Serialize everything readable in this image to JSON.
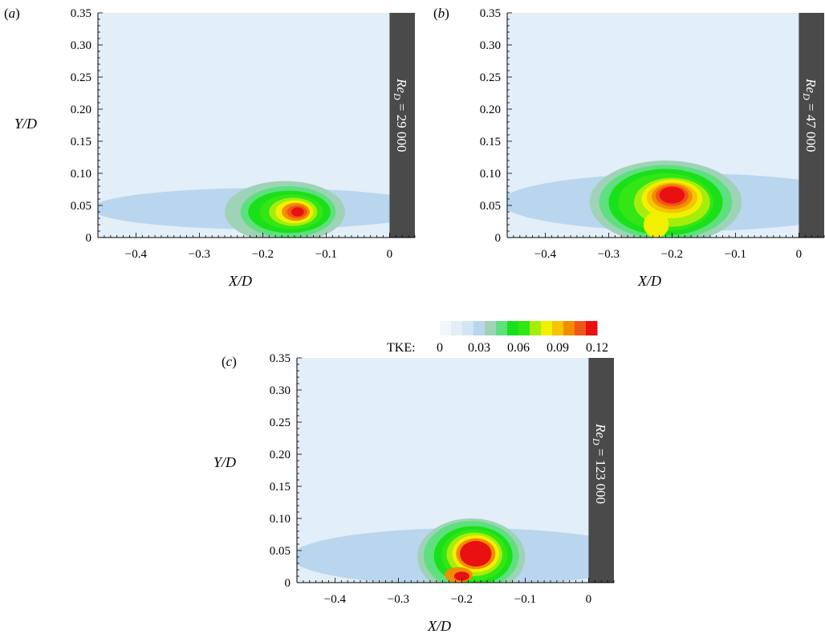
{
  "chart_data": [
    {
      "panel_label": "(a)",
      "type": "heatmap",
      "variable": "TKE",
      "xlabel": "X/D",
      "ylabel": "Y/D",
      "xlim": [
        -0.46,
        0.04
      ],
      "ylim": [
        0,
        0.35
      ],
      "x_ticks": [
        -0.4,
        -0.3,
        -0.2,
        -0.1,
        0
      ],
      "x_tick_labels": [
        "−0.4",
        "−0.3",
        "−0.2",
        "−0.1",
        "0"
      ],
      "y_ticks": [
        0,
        0.05,
        0.1,
        0.15,
        0.2,
        0.25,
        0.3,
        0.35
      ],
      "y_tick_labels": [
        "0",
        "0.05",
        "0.10",
        "0.15",
        "0.20",
        "0.25",
        "0.30",
        "0.35"
      ],
      "annotation": "Re_D = 29 000",
      "re_text": "Re",
      "re_sub": "D",
      "re_value": " = 29 000",
      "cylinder_x_start": 0,
      "tke_peak": {
        "x": -0.145,
        "y": 0.04,
        "value": 0.12
      }
    },
    {
      "panel_label": "(b)",
      "type": "heatmap",
      "variable": "TKE",
      "xlabel": "X/D",
      "ylabel": "",
      "xlim": [
        -0.46,
        0.04
      ],
      "ylim": [
        0,
        0.35
      ],
      "x_ticks": [
        -0.4,
        -0.3,
        -0.2,
        -0.1,
        0
      ],
      "x_tick_labels": [
        "−0.4",
        "−0.3",
        "−0.2",
        "−0.1",
        "0"
      ],
      "y_ticks": [
        0,
        0.05,
        0.1,
        0.15,
        0.2,
        0.25,
        0.3,
        0.35
      ],
      "y_tick_labels": [
        "0",
        "0.05",
        "0.10",
        "0.15",
        "0.20",
        "0.25",
        "0.30",
        "0.35"
      ],
      "annotation": "Re_D = 47 000",
      "re_text": "Re",
      "re_sub": "D",
      "re_value": " = 47 000",
      "cylinder_x_start": 0,
      "tke_peak": {
        "x": -0.2,
        "y": 0.065,
        "value": 0.12
      }
    },
    {
      "panel_label": "(c)",
      "type": "heatmap",
      "variable": "TKE",
      "xlabel": "X/D",
      "ylabel": "Y/D",
      "xlim": [
        -0.46,
        0.04
      ],
      "ylim": [
        0,
        0.35
      ],
      "x_ticks": [
        -0.4,
        -0.3,
        -0.2,
        -0.1,
        0
      ],
      "x_tick_labels": [
        "−0.4",
        "−0.3",
        "−0.2",
        "−0.1",
        "0"
      ],
      "y_ticks": [
        0,
        0.05,
        0.1,
        0.15,
        0.2,
        0.25,
        0.3,
        0.35
      ],
      "y_tick_labels": [
        "0",
        "0.05",
        "0.10",
        "0.15",
        "0.20",
        "0.25",
        "0.30",
        "0.35"
      ],
      "annotation": "Re_D = 123 000",
      "re_text": "Re",
      "re_sub": "D",
      "re_value": " = 123 000",
      "cylinder_x_start": 0,
      "tke_peak": {
        "x": -0.18,
        "y": 0.045,
        "value": 0.12
      }
    }
  ],
  "colorbar": {
    "title": "TKE:",
    "range": [
      0,
      0.12
    ],
    "tick_labels": [
      "0",
      "0.03",
      "0.06",
      "0.09",
      "0.12"
    ],
    "colors": [
      "#f2f7fb",
      "#e2eef8",
      "#d1e5f4",
      "#b9d6ee",
      "#9fd3b7",
      "#5ee07e",
      "#1ae01a",
      "#33e614",
      "#a4ee0e",
      "#f2f000",
      "#f6c400",
      "#f28c00",
      "#f0541a",
      "#e81010"
    ]
  }
}
